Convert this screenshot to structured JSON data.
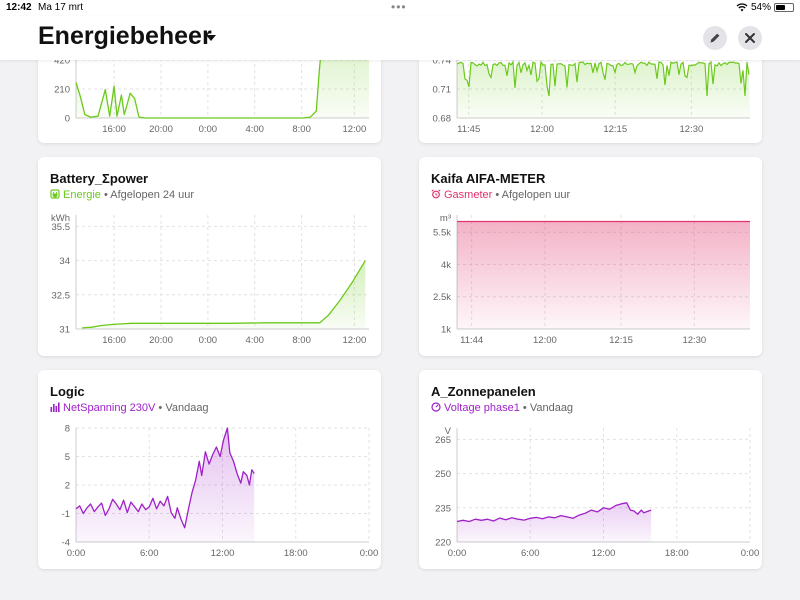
{
  "status_bar": {
    "time": "12:42",
    "date": "Ma 17 mrt",
    "dots": "•••",
    "battery_percent": "54%",
    "battery_level": 0.54
  },
  "header": {
    "title": "Energiebeheer",
    "edit_icon": "pencil-icon",
    "close_icon": "close-icon"
  },
  "cards": {
    "top_left": {
      "y_ticks": [
        "420",
        "210",
        "0"
      ],
      "x_ticks": [
        "16:00",
        "20:00",
        "0:00",
        "4:00",
        "8:00",
        "12:00"
      ]
    },
    "top_right": {
      "y_ticks": [
        "0.74",
        "0.71",
        "0.68"
      ],
      "x_ticks": [
        "11:45",
        "12:00",
        "12:15",
        "12:30"
      ]
    },
    "battery": {
      "title": "Battery_Σpower",
      "sensor": "Energie",
      "sensor_icon": "plug-icon",
      "period": "Afgelopen 24 uur",
      "unit": "kWh",
      "y_ticks": [
        "35.5",
        "34",
        "32.5",
        "31"
      ],
      "x_ticks": [
        "16:00",
        "20:00",
        "0:00",
        "4:00",
        "8:00",
        "12:00"
      ]
    },
    "kaifa": {
      "title": "Kaifa AIFA-METER",
      "sensor": "Gasmeter",
      "sensor_icon": "alarm-clock-icon",
      "period": "Afgelopen uur",
      "unit": "m³",
      "y_ticks": [
        "5.5k",
        "4k",
        "2.5k",
        "1k"
      ],
      "x_ticks": [
        "11:44",
        "12:00",
        "12:15",
        "12:30"
      ]
    },
    "logic": {
      "title": "Logic",
      "sensor": "NetSpanning 230V",
      "sensor_icon": "signal-bars-icon",
      "period": "Vandaag",
      "y_ticks": [
        "8",
        "5",
        "2",
        "-1",
        "-4"
      ],
      "x_ticks": [
        "0:00",
        "6:00",
        "12:00",
        "18:00",
        "0:00"
      ]
    },
    "zonnepanelen": {
      "title": "A_Zonnepanelen",
      "sensor": "Voltage phase1",
      "sensor_icon": "gauge-icon",
      "period": "Vandaag",
      "unit": "V",
      "y_ticks": [
        "265",
        "250",
        "235",
        "220"
      ],
      "x_ticks": [
        "0:00",
        "6:00",
        "12:00",
        "18:00",
        "0:00"
      ]
    }
  },
  "colors": {
    "green": "#6cc91c",
    "pink": "#e0346b",
    "purple": "#a020c8",
    "grid": "#e2e2e2"
  },
  "chart_data": [
    {
      "type": "area",
      "series": [
        {
          "values": [
            [
              0.0,
              200
            ],
            [
              0.3,
              120
            ],
            [
              0.6,
              20
            ],
            [
              1.0,
              5
            ],
            [
              1.5,
              10
            ],
            [
              2.0,
              160
            ],
            [
              2.3,
              10
            ],
            [
              2.6,
              180
            ],
            [
              2.8,
              10
            ],
            [
              3.1,
              130
            ],
            [
              3.3,
              20
            ],
            [
              3.7,
              140
            ],
            [
              4.0,
              110
            ],
            [
              4.3,
              5
            ],
            [
              4.7,
              0
            ],
            [
              6.0,
              0
            ],
            [
              8.0,
              0
            ],
            [
              10.0,
              0
            ],
            [
              12.0,
              0
            ],
            [
              14.0,
              0
            ],
            [
              15.5,
              0
            ],
            [
              16.0,
              5
            ],
            [
              16.4,
              40
            ],
            [
              16.6,
              260
            ],
            [
              16.8,
              440
            ],
            [
              17.2,
              460
            ],
            [
              20.0,
              460
            ]
          ]
        }
      ],
      "ylim": [
        0,
        440
      ]
    },
    {
      "type": "line",
      "ylim": [
        0.68,
        0.745
      ]
    },
    {
      "type": "area",
      "title": "Battery_Σpower",
      "ylabel": "kWh",
      "series": [
        {
          "name": "Energie",
          "values": [
            [
              13.0,
              31.05
            ],
            [
              13.8,
              31.08
            ],
            [
              14.5,
              31.15
            ],
            [
              15.5,
              31.2
            ],
            [
              17.0,
              31.25
            ],
            [
              19.0,
              31.25
            ],
            [
              22.0,
              31.25
            ],
            [
              25.0,
              31.25
            ],
            [
              28.0,
              31.27
            ],
            [
              31.0,
              31.27
            ],
            [
              32.3,
              31.27
            ],
            [
              33.0,
              31.6
            ],
            [
              34.0,
              32.3
            ],
            [
              35.0,
              33.1
            ],
            [
              36.0,
              34.0
            ]
          ]
        }
      ],
      "ylim": [
        31,
        36
      ]
    },
    {
      "type": "area",
      "title": "Kaifa AIFA-METER",
      "ylabel": "m³",
      "series": [
        {
          "name": "Gasmeter",
          "values": [
            [
              0,
              6000
            ],
            [
              59,
              6000
            ]
          ]
        }
      ],
      "ylim": [
        1000,
        6300
      ]
    },
    {
      "type": "area",
      "title": "Logic",
      "series": [
        {
          "name": "NetSpanning 230V",
          "values": [
            [
              0.0,
              -0.5
            ],
            [
              0.3,
              -0.2
            ],
            [
              0.6,
              -1.0
            ],
            [
              0.9,
              -0.4
            ],
            [
              1.2,
              0.0
            ],
            [
              1.5,
              -0.8
            ],
            [
              1.8,
              -0.3
            ],
            [
              2.1,
              0.1
            ],
            [
              2.4,
              -1.2
            ],
            [
              2.7,
              -0.5
            ],
            [
              3.0,
              0.5
            ],
            [
              3.3,
              0.0
            ],
            [
              3.6,
              -0.6
            ],
            [
              3.9,
              0.4
            ],
            [
              4.2,
              -0.9
            ],
            [
              4.5,
              0.2
            ],
            [
              4.8,
              -0.3
            ],
            [
              5.1,
              -0.8
            ],
            [
              5.4,
              0.0
            ],
            [
              5.7,
              -0.6
            ],
            [
              6.0,
              -0.3
            ],
            [
              6.3,
              0.6
            ],
            [
              6.6,
              -0.5
            ],
            [
              6.9,
              0.3
            ],
            [
              7.2,
              -0.2
            ],
            [
              7.5,
              0.8
            ],
            [
              7.8,
              -0.9
            ],
            [
              8.1,
              -1.5
            ],
            [
              8.3,
              -0.4
            ],
            [
              8.6,
              -1.6
            ],
            [
              8.9,
              -2.5
            ],
            [
              9.2,
              -0.6
            ],
            [
              9.5,
              1.2
            ],
            [
              9.8,
              2.5
            ],
            [
              10.1,
              4.5
            ],
            [
              10.3,
              3.0
            ],
            [
              10.6,
              5.5
            ],
            [
              10.9,
              4.2
            ],
            [
              11.2,
              5.2
            ],
            [
              11.5,
              6.0
            ],
            [
              11.8,
              5.0
            ],
            [
              12.1,
              6.8
            ],
            [
              12.4,
              8.0
            ],
            [
              12.6,
              5.4
            ],
            [
              12.9,
              4.5
            ],
            [
              13.2,
              3.2
            ],
            [
              13.5,
              2.2
            ],
            [
              13.7,
              3.4
            ],
            [
              14.0,
              3.0
            ],
            [
              14.2,
              2.0
            ],
            [
              14.4,
              3.6
            ],
            [
              14.6,
              3.2
            ]
          ]
        }
      ],
      "ylim": [
        -4,
        8
      ]
    },
    {
      "type": "area",
      "title": "A_Zonnepanelen",
      "ylabel": "V",
      "series": [
        {
          "name": "Voltage phase1",
          "values": [
            [
              0.0,
              229
            ],
            [
              0.5,
              229.5
            ],
            [
              1.0,
              229
            ],
            [
              1.5,
              230
            ],
            [
              2.0,
              229.5
            ],
            [
              2.5,
              230
            ],
            [
              3.0,
              229.2
            ],
            [
              3.5,
              230.5
            ],
            [
              4.0,
              229.8
            ],
            [
              4.5,
              230.6
            ],
            [
              5.0,
              230
            ],
            [
              5.5,
              229.6
            ],
            [
              6.0,
              230.4
            ],
            [
              6.5,
              230.8
            ],
            [
              7.0,
              230.2
            ],
            [
              7.5,
              231
            ],
            [
              8.0,
              230.6
            ],
            [
              8.5,
              231.6
            ],
            [
              9.0,
              231
            ],
            [
              9.5,
              230.4
            ],
            [
              10.0,
              231.8
            ],
            [
              10.5,
              232.6
            ],
            [
              11.0,
              234
            ],
            [
              11.5,
              233.2
            ],
            [
              12.0,
              235
            ],
            [
              12.5,
              234.4
            ],
            [
              13.0,
              236
            ],
            [
              13.5,
              236.8
            ],
            [
              13.9,
              237.2
            ],
            [
              14.2,
              234
            ],
            [
              14.5,
              233.6
            ],
            [
              14.8,
              232.2
            ],
            [
              15.1,
              234
            ],
            [
              15.3,
              232.8
            ],
            [
              15.6,
              233.4
            ],
            [
              15.9,
              234
            ]
          ]
        }
      ],
      "ylim": [
        220,
        270
      ]
    }
  ]
}
